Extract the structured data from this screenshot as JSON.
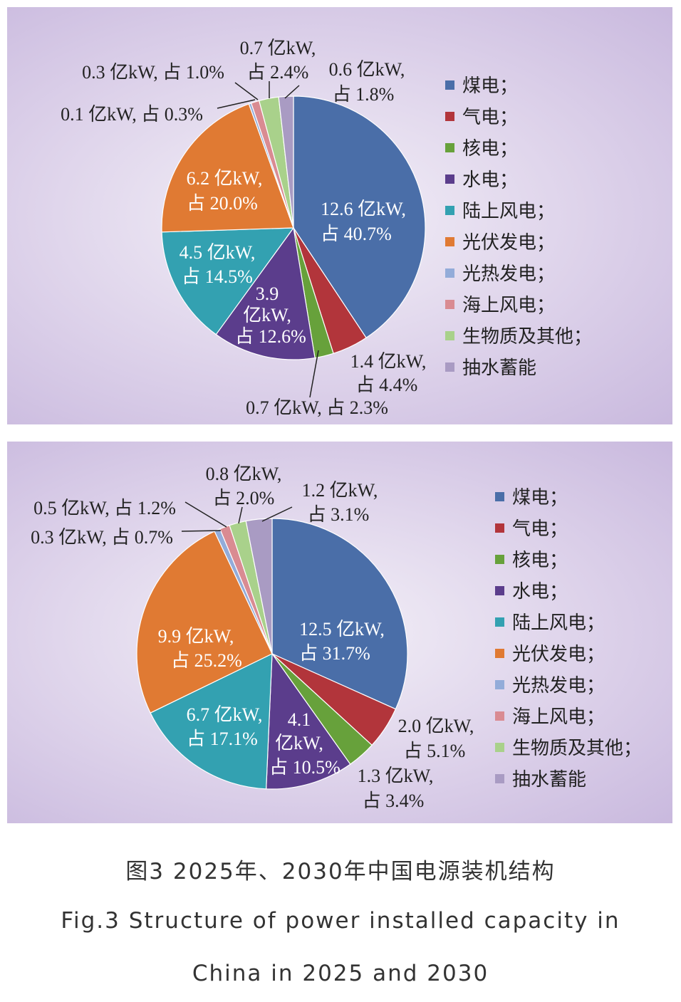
{
  "chart_data": [
    {
      "type": "pie",
      "unit": "亿kW",
      "start": "top",
      "direction": "clockwise",
      "categories": [
        "煤电；",
        "气电；",
        "核电；",
        "水电；",
        "陆上风电；",
        "光伏发电；",
        "光热发电；",
        "海上风电；",
        "生物质及其他；",
        "抽水蓄能"
      ],
      "values": [
        12.6,
        1.4,
        0.7,
        3.9,
        4.5,
        6.2,
        0.1,
        0.3,
        0.7,
        0.6
      ],
      "shares": [
        40.7,
        4.4,
        2.3,
        12.6,
        14.5,
        20.0,
        0.3,
        1.0,
        2.4,
        1.8
      ],
      "legend": "right"
    },
    {
      "type": "pie",
      "unit": "亿kW",
      "start": "top",
      "direction": "clockwise",
      "categories": [
        "煤电；",
        "气电；",
        "核电；",
        "水电；",
        "陆上风电；",
        "光伏发电；",
        "光热发电；",
        "海上风电；",
        "生物质及其他；",
        "抽水蓄能"
      ],
      "values": [
        12.5,
        2.0,
        1.3,
        4.1,
        6.7,
        9.9,
        0.3,
        0.5,
        0.8,
        1.2
      ],
      "shares": [
        31.7,
        5.1,
        3.4,
        10.5,
        17.1,
        25.2,
        0.7,
        1.2,
        2.0,
        3.1
      ],
      "legend": "right"
    }
  ],
  "colors": [
    "#4a6ea8",
    "#b2353b",
    "#67a13b",
    "#5b3d8c",
    "#33a1b1",
    "#e07a33",
    "#93acd9",
    "#d98b92",
    "#a9d18b",
    "#a99bc3"
  ],
  "caption": {
    "zh": "图3 2025年、2030年中国电源装机结构",
    "en1": "Fig.3 Structure of power installed capacity in",
    "en2": "China in 2025 and 2030"
  }
}
